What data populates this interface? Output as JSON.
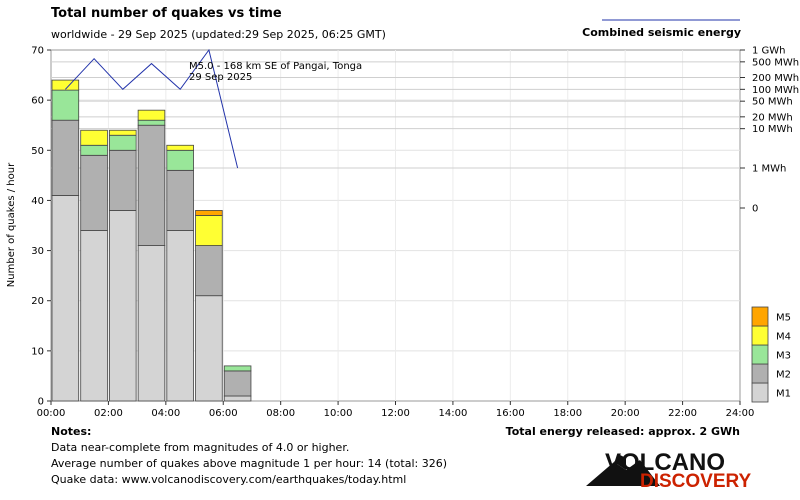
{
  "header": {
    "title": "Total number of quakes vs time",
    "subtitle": "worldwide - 29 Sep 2025 (updated:29 Sep 2025, 06:25 GMT)",
    "energy_legend_label": "Combined seismic energy"
  },
  "annotation": {
    "line1": "M5.0 - 168 km SE of Pangai, Tonga",
    "line2": "29 Sep 2025"
  },
  "notes": {
    "heading": "Notes:",
    "line1": "Data near-complete from magnitudes of 4.0 or higher.",
    "line2": "Average number of quakes above magnitude 1 per hour: 14 (total: 326)",
    "line3": "Quake data: www.volcanodiscovery.com/earthquakes/today.html"
  },
  "energy_total": "Total energy released: approx. 2 GWh",
  "logo": {
    "word1": "VOLCANO",
    "word2": "DISCOVERY"
  },
  "chart_data": {
    "type": "bar",
    "stacked": true,
    "ylabel": "Number of quakes / hour",
    "ylim": [
      0,
      70
    ],
    "y_ticks": [
      0,
      10,
      20,
      30,
      40,
      50,
      60,
      70
    ],
    "grid": true,
    "x_ticks": [
      "00:00",
      "02:00",
      "04:00",
      "06:00",
      "08:00",
      "10:00",
      "12:00",
      "14:00",
      "16:00",
      "18:00",
      "20:00",
      "22:00",
      "24:00"
    ],
    "hours": [
      0,
      1,
      2,
      3,
      4,
      5,
      6
    ],
    "series": [
      {
        "name": "M1",
        "color": "#d4d4d4",
        "values": [
          41,
          34,
          38,
          31,
          34,
          21,
          1
        ]
      },
      {
        "name": "M2",
        "color": "#b0b0b0",
        "values": [
          15,
          15,
          12,
          24,
          12,
          10,
          5
        ]
      },
      {
        "name": "M3",
        "color": "#99e699",
        "values": [
          6,
          2,
          3,
          1,
          4,
          0,
          1
        ]
      },
      {
        "name": "M4",
        "color": "#ffff33",
        "values": [
          2,
          3,
          1,
          2,
          1,
          6,
          0
        ]
      },
      {
        "name": "M5",
        "color": "#ffa500",
        "values": [
          0,
          0,
          0,
          0,
          0,
          1,
          0
        ]
      }
    ],
    "legend_position": "bottom-right",
    "energy_series": {
      "name": "Combined seismic energy",
      "color": "#2233aa",
      "hours": [
        0.5,
        1.5,
        2.5,
        3.5,
        4.5,
        5.5,
        6.5
      ],
      "values_mwh": [
        100,
        600,
        100,
        450,
        100,
        1000,
        1
      ]
    },
    "energy_axis_ticks": [
      "1 GWh",
      "500 MWh",
      "200 MWh",
      "100 MWh",
      "50 MWh",
      "20 MWh",
      "10 MWh",
      "1 MWh",
      "0"
    ],
    "energy_axis_values_mwh": [
      1000,
      500,
      200,
      100,
      50,
      20,
      10,
      1,
      0
    ]
  }
}
